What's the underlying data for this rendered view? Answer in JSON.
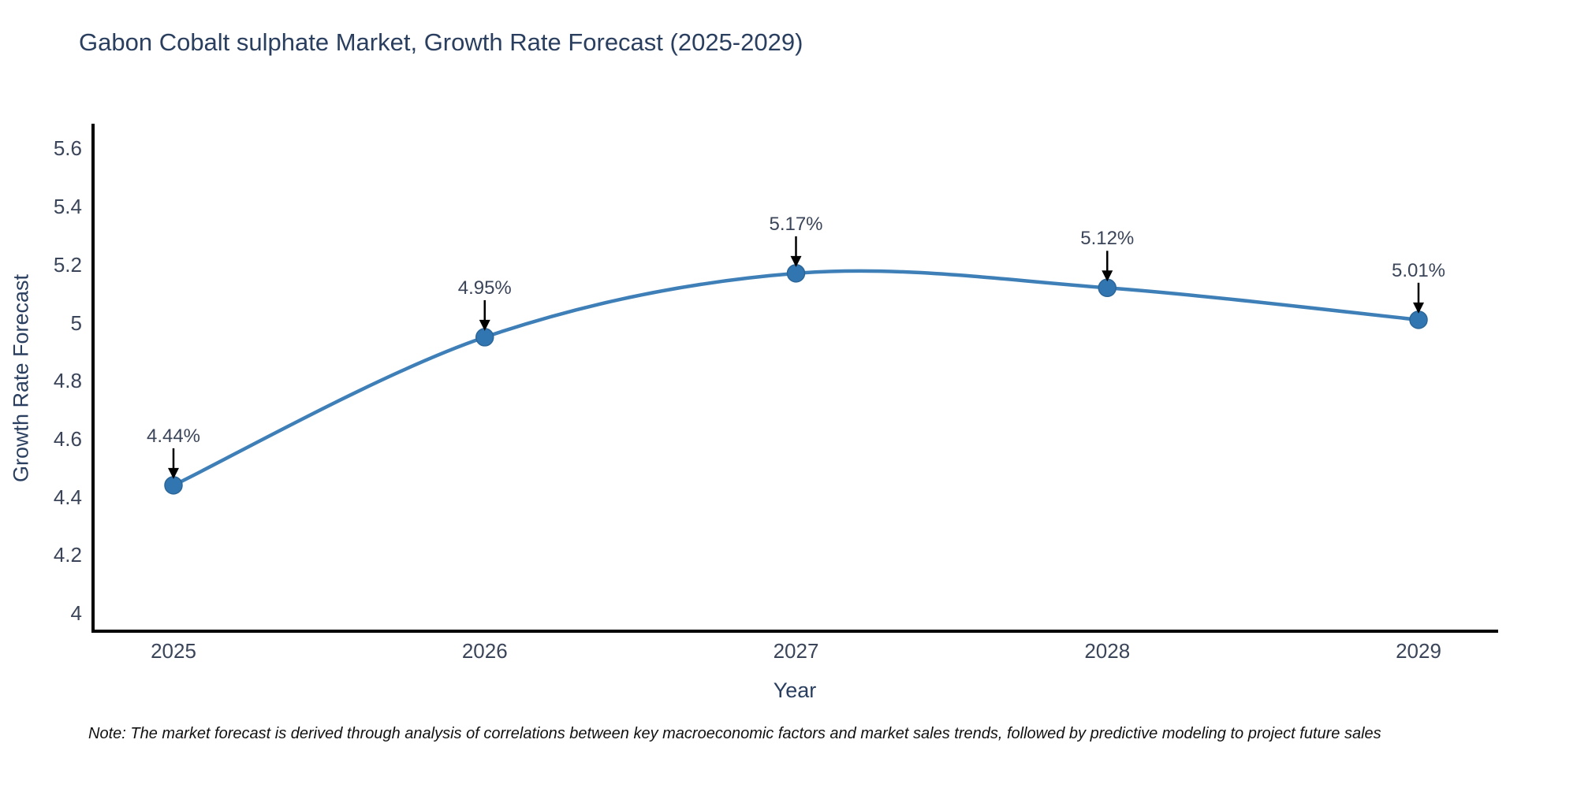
{
  "chart_data": {
    "type": "line",
    "title": "Gabon Cobalt sulphate Market, Growth Rate Forecast (2025-2029)",
    "x": [
      2025,
      2026,
      2027,
      2028,
      2029
    ],
    "values": [
      4.44,
      4.95,
      5.17,
      5.12,
      5.01
    ],
    "point_labels": [
      "4.44%",
      "4.95%",
      "5.17%",
      "5.12%",
      "5.01%"
    ],
    "xlabel": "Year",
    "ylabel": "Growth Rate Forecast",
    "yticks": [
      4,
      4.2,
      4.4,
      4.6,
      4.8,
      5,
      5.2,
      5.4,
      5.6
    ],
    "ylim": [
      3.94,
      5.74
    ],
    "grid": false,
    "legend": false,
    "line_color": "#3e7fb8",
    "marker_color": "#3276b1",
    "marker_edge_color": "#2b6699",
    "axis_color": "#000000",
    "annotation_arrow_color": "#000000"
  },
  "note": "Note: The market forecast is derived through analysis of correlations between key macroeconomic factors and market sales trends, followed by predictive modeling to project future sales"
}
